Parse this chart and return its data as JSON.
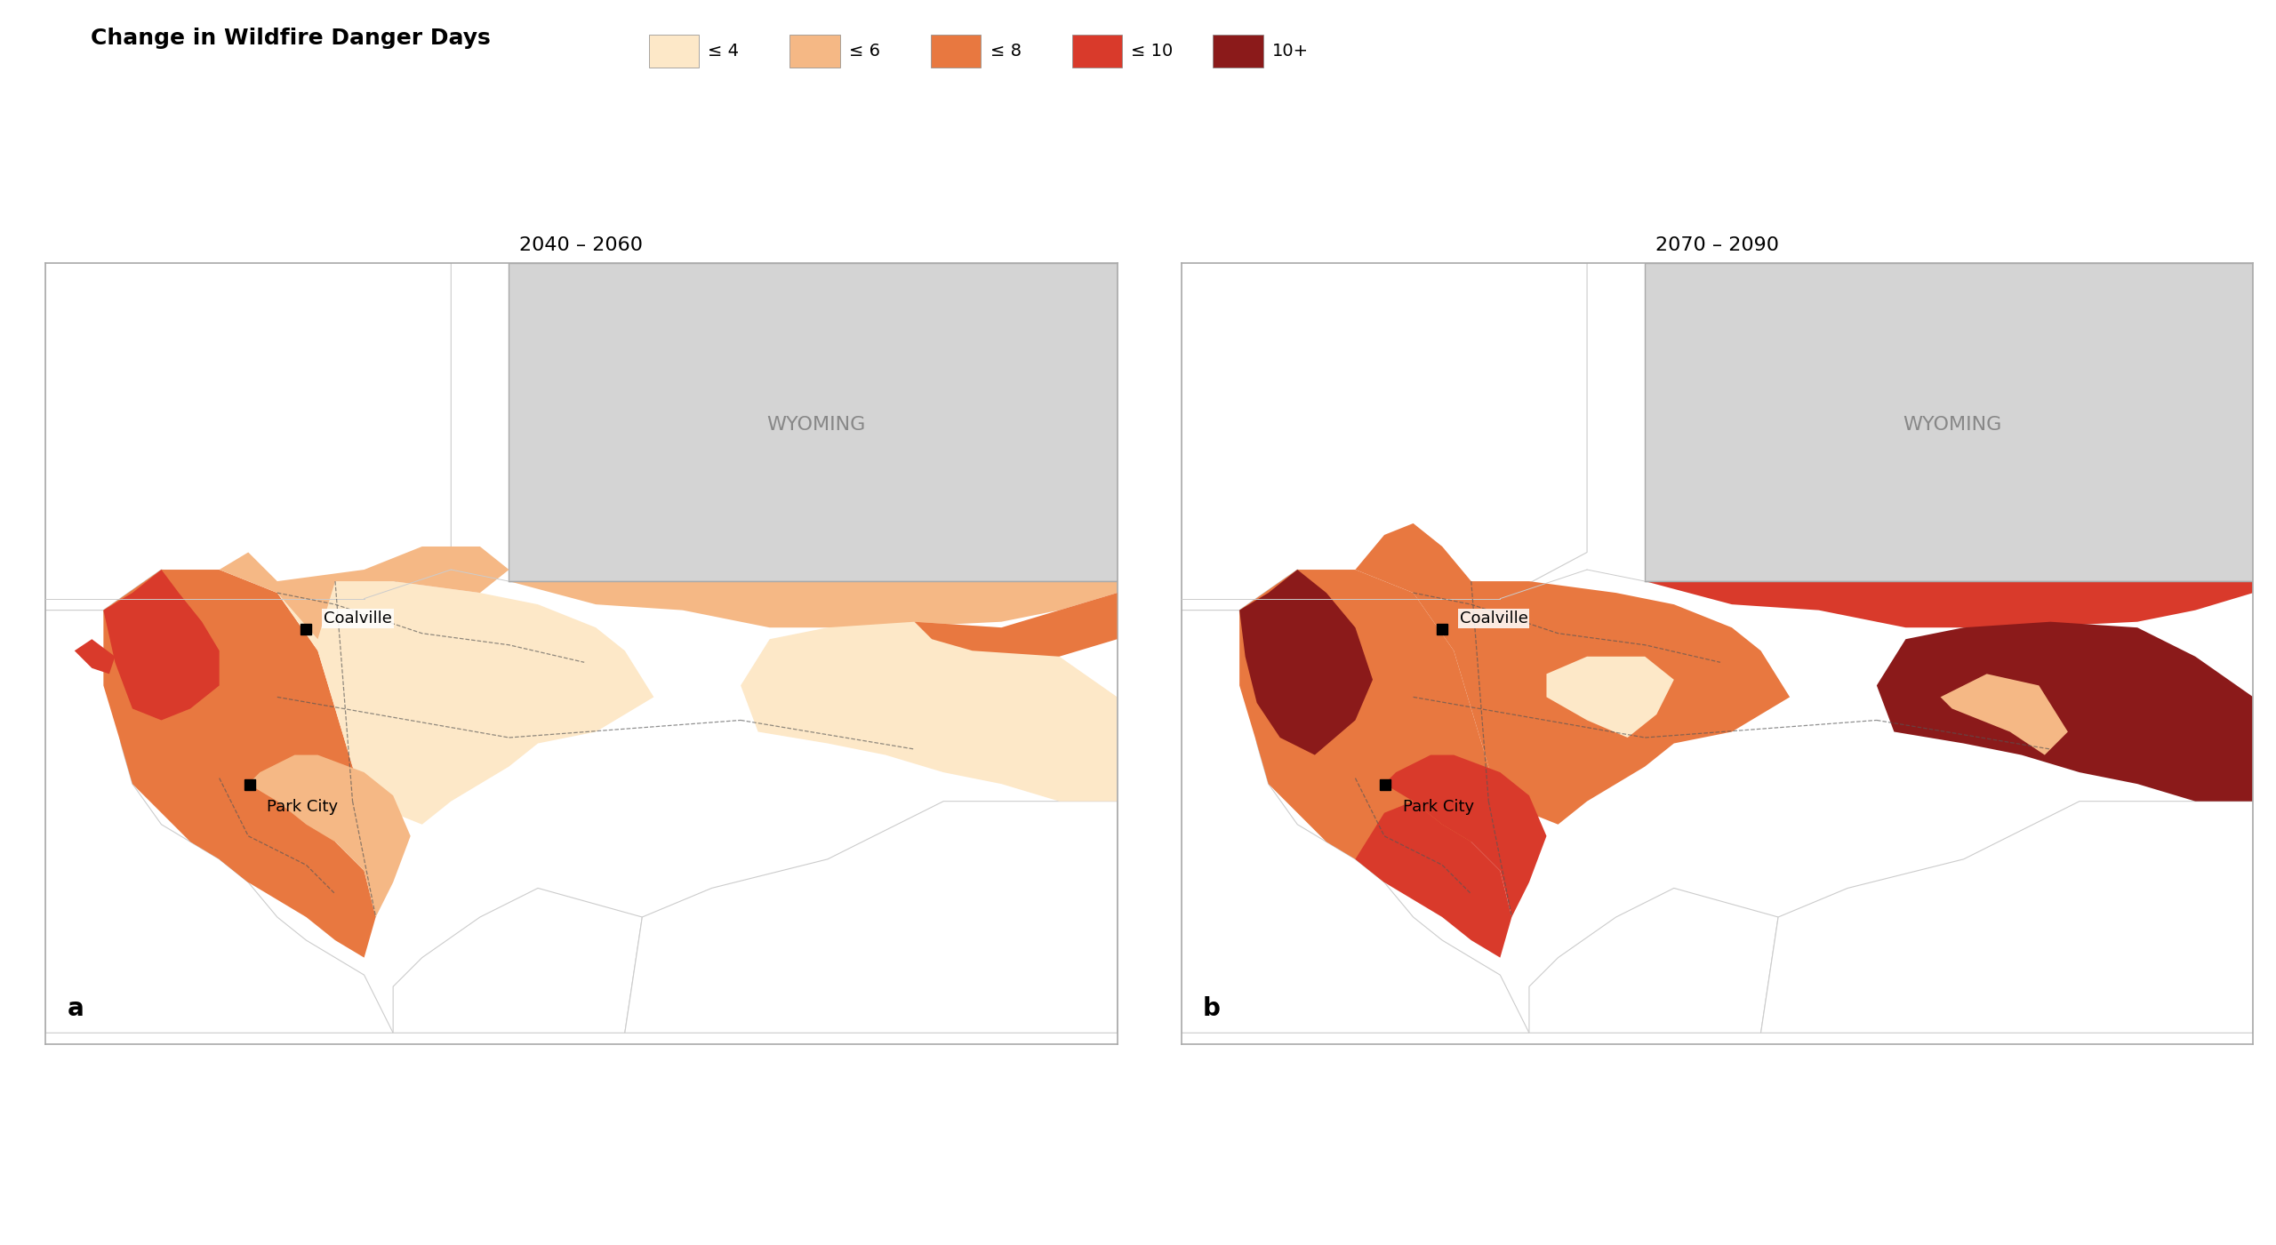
{
  "title": "Change in Wildfire Danger Days",
  "period_a": "2040 – 2060",
  "period_b": "2070 – 2090",
  "label_a": "a",
  "label_b": "b",
  "legend_colors": [
    "#fde8c8",
    "#f5b885",
    "#e87840",
    "#d93a2b",
    "#8b1a1a"
  ],
  "legend_labels": [
    "≤ 4",
    "≤ 6",
    "≤ 8",
    "≤ 10",
    "10+"
  ],
  "wyoming_color": "#d4d4d4",
  "wyoming_label": "WYOMING",
  "background_color": "#ffffff",
  "county_dashed_color": "#555555",
  "coalville_label": "Coalville",
  "parkCity_label": "Park City",
  "title_fontsize": 18,
  "period_fontsize": 16,
  "legend_fontsize": 14,
  "wyoming_fontsize": 16,
  "city_fontsize": 13
}
